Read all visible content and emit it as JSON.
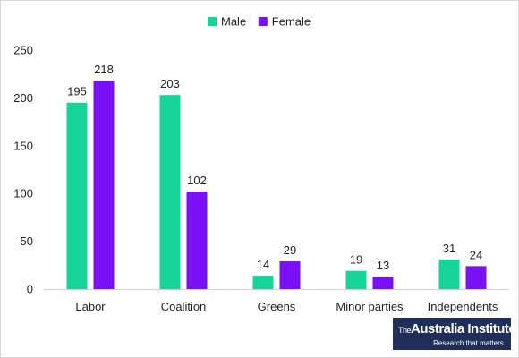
{
  "chart_data": {
    "type": "bar",
    "title": "",
    "xlabel": "",
    "ylabel": "",
    "categories": [
      "Labor",
      "Coalition",
      "Greens",
      "Minor parties",
      "Independents"
    ],
    "series": [
      {
        "name": "Male",
        "color": "#16d39a",
        "values": [
          195,
          203,
          14,
          19,
          31
        ]
      },
      {
        "name": "Female",
        "color": "#7a10f5",
        "values": [
          218,
          102,
          29,
          13,
          24
        ]
      }
    ],
    "ylim": [
      0,
      250
    ],
    "yticks": [
      0,
      50,
      100,
      150,
      200,
      250
    ],
    "grid": false,
    "legend_position": "top-center",
    "data_labels": true
  },
  "logo": {
    "the": "The",
    "name": "Australia Institute",
    "tagline": "Research that matters."
  }
}
